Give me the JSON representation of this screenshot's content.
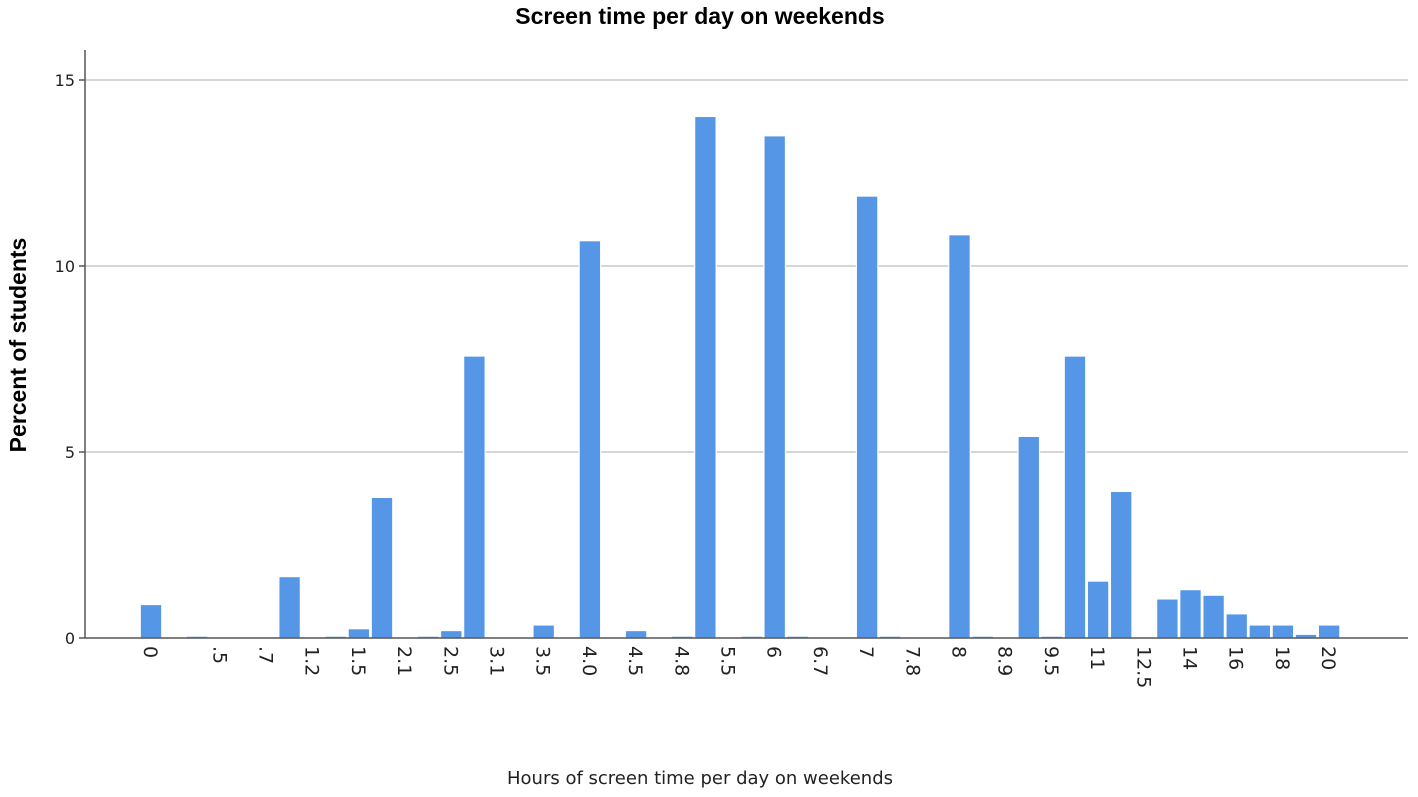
{
  "chart_data": {
    "type": "bar",
    "title": "Screen time per day on weekends",
    "xlabel": "Hours of screen time per day on weekends",
    "ylabel": "Percent of students",
    "ylim": [
      0,
      15.8
    ],
    "yticks": [
      "0",
      "5",
      "10",
      "15"
    ],
    "grid": true,
    "bar_color": "#5596e6",
    "categories": [
      "0",
      "",
      "",
      ".5",
      "",
      ".7",
      "",
      "1.2",
      "",
      "1.5",
      "",
      "2.1",
      "",
      "2.5",
      "",
      "3.1",
      "",
      "3.5",
      "",
      "4.0",
      "",
      "4.5",
      "",
      "4.8",
      "",
      "5.5",
      "",
      "6",
      "",
      "6.7",
      "",
      "7",
      "",
      "7.8",
      "",
      "8",
      "",
      "8.9",
      "",
      "9.5",
      "",
      "11",
      "",
      "12.5",
      "",
      "14",
      "",
      "16",
      "",
      "18",
      "",
      "20"
    ],
    "values": [
      0.9,
      0,
      0.05,
      0,
      0,
      0,
      1.65,
      0,
      0.05,
      0.25,
      3.78,
      0,
      0.05,
      0.2,
      7.58,
      0,
      0,
      0.35,
      0,
      10.68,
      0,
      0.2,
      0,
      0.05,
      14.02,
      0,
      0.05,
      13.5,
      0.05,
      0,
      0,
      11.88,
      0.05,
      0,
      0,
      10.84,
      0.05,
      0,
      5.42,
      0.05,
      7.58,
      1.53,
      3.94,
      0,
      1.05,
      1.3,
      1.15,
      0.65,
      0.35,
      0.35,
      0.1,
      0.35
    ]
  }
}
